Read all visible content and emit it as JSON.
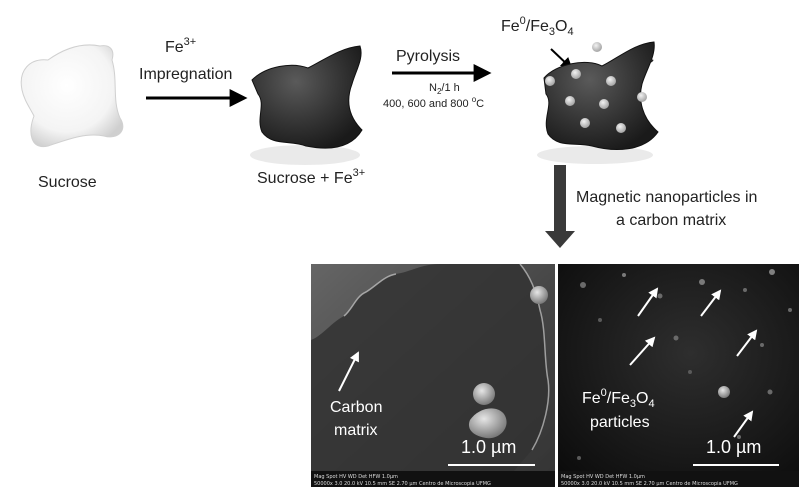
{
  "step1": {
    "label": "Sucrose",
    "reagent_prefix": "Fe",
    "reagent_sup": "3+",
    "reagent_name": "Impregnation"
  },
  "step2": {
    "label_prefix": "Sucrose + Fe",
    "label_sup": "3+"
  },
  "step3": {
    "process": "Pyrolysis",
    "condition_n": "N",
    "condition_sub": "2",
    "condition_rest": "/1 h",
    "temps_text": "400, 600 and  800 ",
    "temps_sup": "o",
    "temps_unit": "C",
    "fe_label": {
      "a": "Fe",
      "b": "0",
      "c": "/Fe",
      "d": "3",
      "e": "O",
      "f": "4"
    },
    "c_label": "C"
  },
  "result": {
    "line1": "Magnetic nanoparticles in",
    "line2": "a  carbon matrix"
  },
  "images": [
    {
      "annot_line1": "Carbon",
      "annot_line2": "matrix",
      "scale_value": "1.0 ",
      "scale_unit": "µm",
      "meta_text": "Mag   Spot   HV     WD    Det   HFW        1.0μm",
      "meta_text2": "50000x  3.0  20.0 kV 10.5 mm  SE  2.70 μm   Centro de Microscopia UFMG"
    },
    {
      "annot_a": "Fe",
      "annot_b": "0",
      "annot_c": "/Fe",
      "annot_d": "3",
      "annot_e": "O",
      "annot_f": "4",
      "annot_line2": "particles",
      "scale_value": "1.0 ",
      "scale_unit": "µm",
      "meta_text": "Mag   Spot   HV     WD    Det   HFW        1.0μm",
      "meta_text2": "50000x  3.0  20.0 kV 10.5 mm  SE  2.70 μm   Centro de Microscopia UFMG"
    }
  ]
}
